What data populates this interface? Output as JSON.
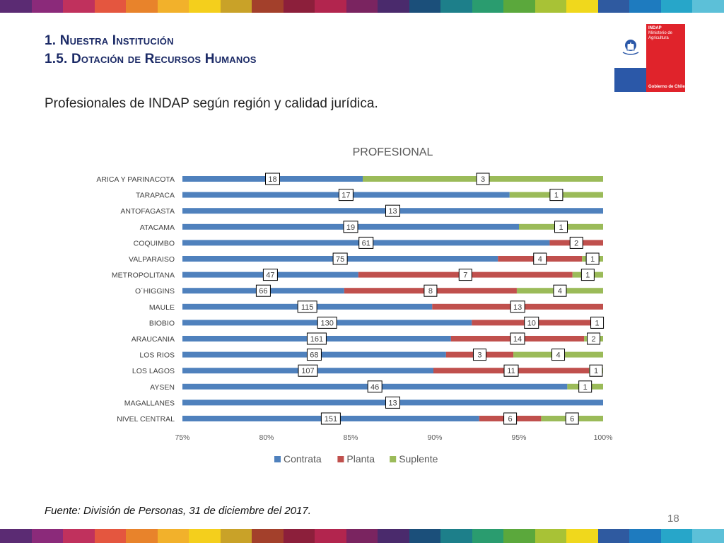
{
  "header": {
    "title_line1": "1. Nuestra Institución",
    "title_line2": "1.5. Dotación de Recursos Humanos",
    "subtitle": "Profesionales de INDAP según región y calidad jurídica."
  },
  "logo": {
    "org": "INDAP",
    "ministry": "Ministerio de Agricultura",
    "government": "Gobierno de Chile"
  },
  "footer": {
    "source": "Fuente: División de Personas, 31 de diciembre del 2017.",
    "page": "18"
  },
  "colors": {
    "contrata": "#4f81bd",
    "planta": "#c0504d",
    "suplente": "#9bbb59",
    "title_blue": "#1b2a66"
  },
  "stripe_colors": [
    "#5b2b73",
    "#8b2a7a",
    "#c0315d",
    "#e4563f",
    "#e8832b",
    "#f2b12b",
    "#f4cf1c",
    "#c9a228",
    "#a3402b",
    "#8c1f3b",
    "#b2254e",
    "#7a2460",
    "#4a2a6c",
    "#1b4f7a",
    "#1d7f8a",
    "#2a9c6f",
    "#5ba83c",
    "#a8c236",
    "#f0d81c",
    "#2f5aa0",
    "#1e7bbf",
    "#27a6c9",
    "#5cc0d8"
  ],
  "chart_data": {
    "type": "bar",
    "orientation": "horizontal",
    "stacked": "percent",
    "title": "PROFESIONAL",
    "xlim": [
      0.75,
      1.0
    ],
    "xticks": [
      "75%",
      "80%",
      "85%",
      "90%",
      "95%",
      "100%"
    ],
    "categories": [
      "ARICA Y PARINACOTA",
      "TARAPACA",
      "ANTOFAGASTA",
      "ATACAMA",
      "COQUIMBO",
      "VALPARAISO",
      "METROPOLITANA",
      "O´HIGGINS",
      "MAULE",
      "BIOBIO",
      "ARAUCANIA",
      "LOS RIOS",
      "LOS LAGOS",
      "AYSEN",
      "MAGALLANES",
      "NIVEL CENTRAL"
    ],
    "series": [
      {
        "name": "Contrata",
        "values": [
          18,
          17,
          13,
          19,
          61,
          75,
          47,
          66,
          115,
          130,
          161,
          68,
          107,
          46,
          13,
          151
        ]
      },
      {
        "name": "Planta",
        "values": [
          0,
          0,
          0,
          0,
          2,
          4,
          7,
          8,
          13,
          10,
          14,
          3,
          11,
          0,
          0,
          6
        ]
      },
      {
        "name": "Suplente",
        "values": [
          3,
          1,
          0,
          1,
          0,
          1,
          1,
          4,
          0,
          1,
          2,
          4,
          1,
          1,
          0,
          6
        ]
      }
    ],
    "legend": "bottom",
    "grid": false
  }
}
